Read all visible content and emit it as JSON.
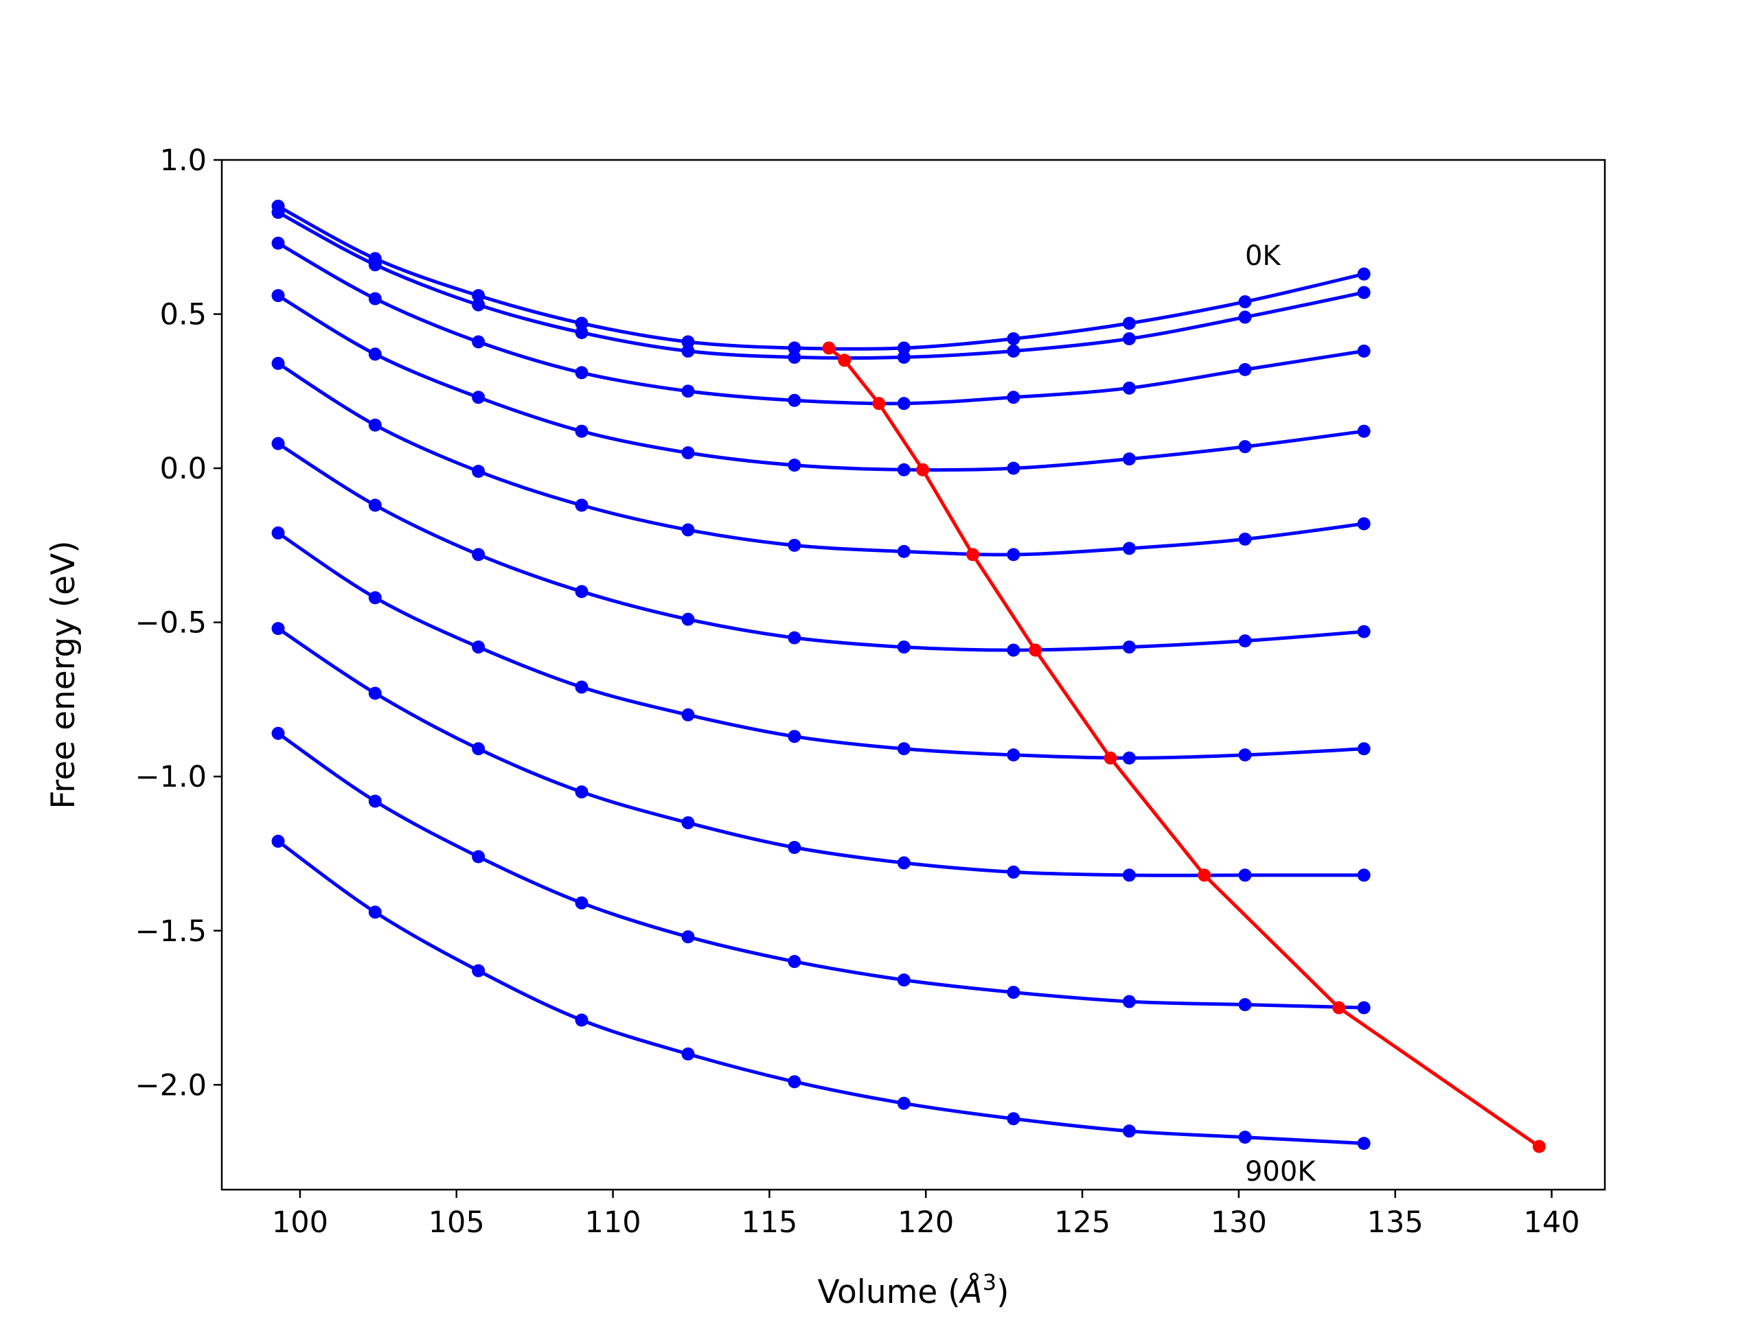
{
  "chart_data": {
    "type": "line",
    "xlabel_prefix": "Volume (",
    "xlabel_unit_base": "Å",
    "xlabel_unit_exp": "3",
    "xlabel_suffix": ")",
    "ylabel": "Free energy (eV)",
    "xlim": [
      97.5,
      141.7
    ],
    "ylim": [
      -2.34,
      1.0
    ],
    "xticks": [
      100,
      105,
      110,
      115,
      120,
      125,
      130,
      135,
      140
    ],
    "xtick_labels": [
      "100",
      "105",
      "110",
      "115",
      "120",
      "125",
      "130",
      "135",
      "140"
    ],
    "yticks": [
      1.0,
      0.5,
      0.0,
      -0.5,
      -1.0,
      -1.5,
      -2.0
    ],
    "ytick_labels": [
      "1.0",
      "0.5",
      "0.0",
      "−0.5",
      "−1.0",
      "−1.5",
      "−2.0"
    ],
    "grid": false,
    "annotations": [
      {
        "text": "0K",
        "x": 130.2,
        "y": 0.69
      },
      {
        "text": "900K",
        "x": 130.2,
        "y": -2.28
      }
    ],
    "colors": {
      "series": "#0000ff",
      "equilibrium": "#ff0000"
    },
    "x": [
      99.3,
      102.4,
      105.7,
      109.0,
      112.4,
      115.8,
      119.3,
      122.8,
      126.5,
      130.2,
      134.0
    ],
    "series": [
      {
        "values": [
          0.85,
          0.68,
          0.56,
          0.47,
          0.41,
          0.39,
          0.39,
          0.42,
          0.47,
          0.54,
          0.63
        ]
      },
      {
        "values": [
          0.83,
          0.66,
          0.53,
          0.44,
          0.38,
          0.36,
          0.36,
          0.38,
          0.42,
          0.49,
          0.57
        ]
      },
      {
        "values": [
          0.73,
          0.55,
          0.41,
          0.31,
          0.25,
          0.22,
          0.21,
          0.23,
          0.26,
          0.32,
          0.38
        ]
      },
      {
        "values": [
          0.56,
          0.37,
          0.23,
          0.12,
          0.05,
          0.01,
          -0.005,
          0.0,
          0.03,
          0.07,
          0.12
        ]
      },
      {
        "values": [
          0.34,
          0.14,
          -0.01,
          -0.12,
          -0.2,
          -0.25,
          -0.27,
          -0.28,
          -0.26,
          -0.23,
          -0.18
        ]
      },
      {
        "values": [
          0.08,
          -0.12,
          -0.28,
          -0.4,
          -0.49,
          -0.55,
          -0.58,
          -0.59,
          -0.58,
          -0.56,
          -0.53
        ]
      },
      {
        "values": [
          -0.21,
          -0.42,
          -0.58,
          -0.71,
          -0.8,
          -0.87,
          -0.91,
          -0.93,
          -0.94,
          -0.93,
          -0.91
        ]
      },
      {
        "values": [
          -0.52,
          -0.73,
          -0.91,
          -1.05,
          -1.15,
          -1.23,
          -1.28,
          -1.31,
          -1.32,
          -1.32,
          -1.32
        ]
      },
      {
        "values": [
          -0.86,
          -1.08,
          -1.26,
          -1.41,
          -1.52,
          -1.6,
          -1.66,
          -1.7,
          -1.73,
          -1.74,
          -1.75
        ]
      },
      {
        "values": [
          -1.21,
          -1.44,
          -1.63,
          -1.79,
          -1.9,
          -1.99,
          -2.06,
          -2.11,
          -2.15,
          -2.17,
          -2.19
        ]
      }
    ],
    "equilibrium": {
      "x": [
        116.9,
        117.4,
        118.5,
        119.9,
        121.5,
        123.5,
        125.9,
        128.9,
        133.2,
        139.6
      ],
      "y": [
        0.39,
        0.35,
        0.21,
        -0.005,
        -0.28,
        -0.59,
        -0.94,
        -1.32,
        -1.75,
        -2.2
      ]
    }
  }
}
